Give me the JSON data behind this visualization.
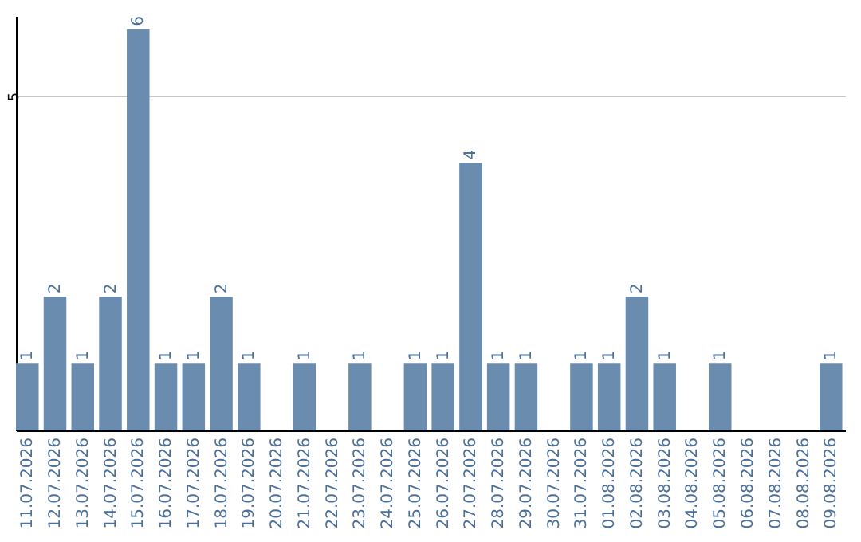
{
  "chart_data": {
    "type": "bar",
    "categories": [
      "11.07.2026",
      "12.07.2026",
      "13.07.2026",
      "14.07.2026",
      "15.07.2026",
      "16.07.2026",
      "17.07.2026",
      "18.07.2026",
      "19.07.2026",
      "20.07.2026",
      "21.07.2026",
      "22.07.2026",
      "23.07.2026",
      "24.07.2026",
      "25.07.2026",
      "26.07.2026",
      "27.07.2026",
      "28.07.2026",
      "29.07.2026",
      "30.07.2026",
      "31.07.2026",
      "01.08.2026",
      "02.08.2026",
      "03.08.2026",
      "04.08.2026",
      "05.08.2026",
      "06.08.2026",
      "07.08.2026",
      "08.08.2026",
      "09.08.2026"
    ],
    "values": [
      1,
      2,
      1,
      2,
      6,
      1,
      1,
      2,
      1,
      0,
      1,
      0,
      1,
      0,
      1,
      1,
      4,
      1,
      1,
      0,
      1,
      1,
      2,
      1,
      0,
      1,
      0,
      0,
      0,
      1
    ],
    "value_labels": [
      "1",
      "2",
      "1",
      "2",
      "6",
      "1",
      "1",
      "2",
      "1",
      null,
      "1",
      null,
      "1",
      null,
      "1",
      "1",
      "4",
      "1",
      "1",
      null,
      "1",
      "1",
      "2",
      "1",
      null,
      "1",
      null,
      null,
      null,
      "1"
    ],
    "color": "#6a8caf",
    "ylim": [
      0,
      6.2
    ],
    "yticks": [
      5
    ],
    "grid": "y"
  }
}
